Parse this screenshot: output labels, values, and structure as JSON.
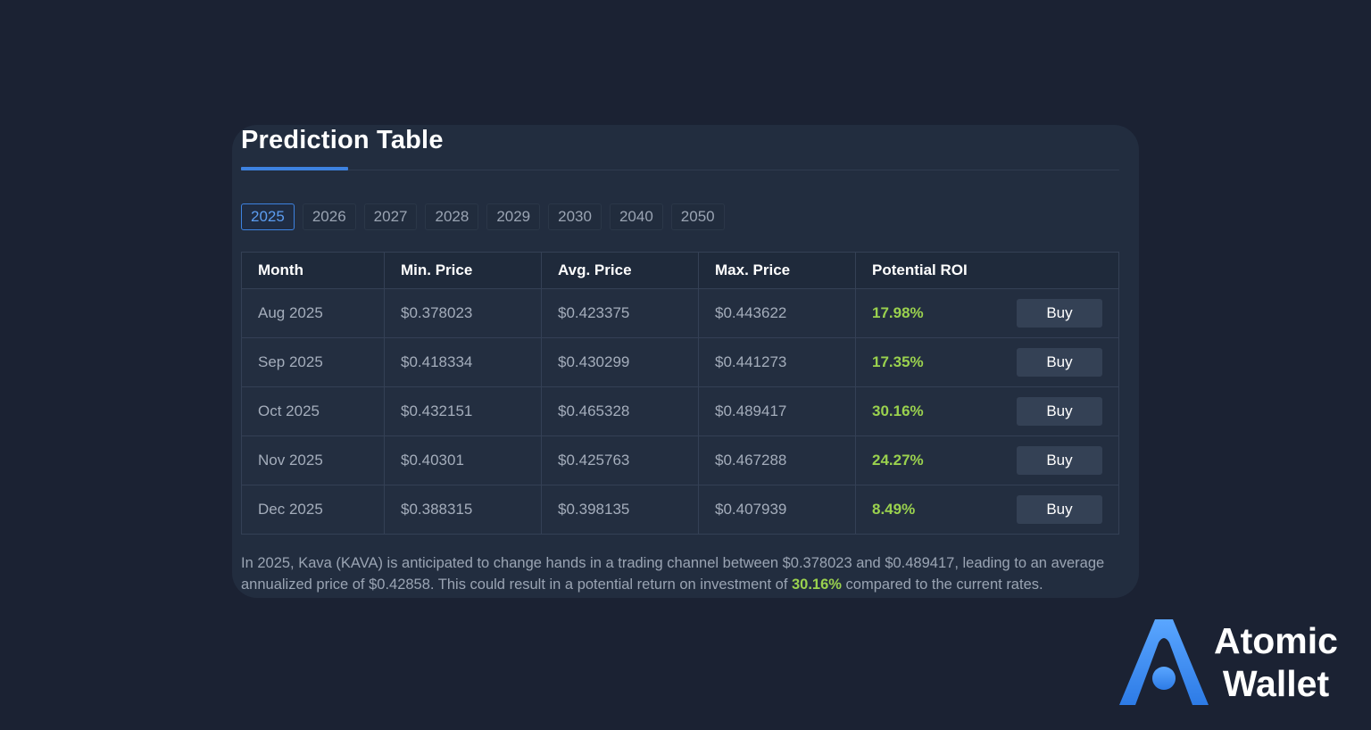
{
  "card": {
    "title": "Prediction Table"
  },
  "year_tabs": [
    "2025",
    "2026",
    "2027",
    "2028",
    "2029",
    "2030",
    "2040",
    "2050"
  ],
  "active_year": "2025",
  "table": {
    "headers": {
      "month": "Month",
      "min": "Min. Price",
      "avg": "Avg. Price",
      "max": "Max. Price",
      "roi": "Potential ROI"
    },
    "buy_label": "Buy",
    "rows": [
      {
        "month": "Aug 2025",
        "min": "$0.378023",
        "avg": "$0.423375",
        "max": "$0.443622",
        "roi": "17.98%"
      },
      {
        "month": "Sep 2025",
        "min": "$0.418334",
        "avg": "$0.430299",
        "max": "$0.441273",
        "roi": "17.35%"
      },
      {
        "month": "Oct 2025",
        "min": "$0.432151",
        "avg": "$0.465328",
        "max": "$0.489417",
        "roi": "30.16%"
      },
      {
        "month": "Nov 2025",
        "min": "$0.40301",
        "avg": "$0.425763",
        "max": "$0.467288",
        "roi": "24.27%"
      },
      {
        "month": "Dec 2025",
        "min": "$0.388315",
        "avg": "$0.398135",
        "max": "$0.407939",
        "roi": "8.49%"
      }
    ]
  },
  "summary": {
    "before": "In 2025, Kava (KAVA) is anticipated to change hands in a trading channel between $0.378023 and $0.489417, leading to an average annualized price of $0.42858. This could result in a potential return on investment of ",
    "highlight": "30.16%",
    "after": " compared to the current rates."
  },
  "brand": {
    "line1": "Atomic",
    "line2": "Wallet"
  },
  "colors": {
    "background": "#1b2233",
    "card": "#222d3f",
    "accent": "#3d82e0",
    "roi_green": "#9ad14e"
  }
}
